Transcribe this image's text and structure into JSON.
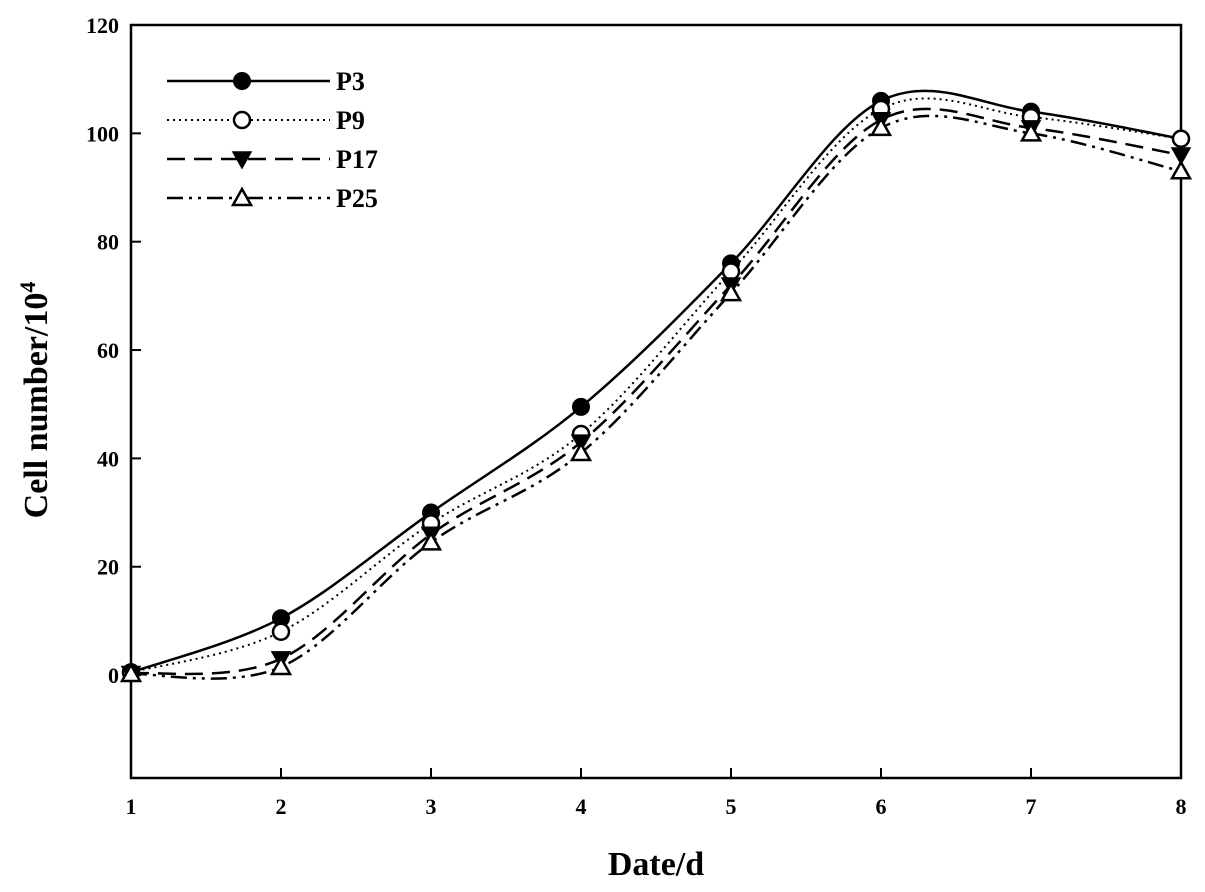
{
  "chart_data": {
    "type": "line",
    "title": "",
    "xlabel": "Date/d",
    "ylabel_main": "Cell number/10",
    "ylabel_sup": "4",
    "x": [
      1,
      2,
      3,
      4,
      5,
      6,
      7,
      8
    ],
    "xlim": [
      1,
      8
    ],
    "ylim": [
      -19,
      120
    ],
    "yticks": [
      0,
      20,
      40,
      60,
      80,
      100,
      120
    ],
    "xticks": [
      1,
      2,
      3,
      4,
      5,
      6,
      7,
      8
    ],
    "grid": false,
    "legend": "top-left",
    "series": [
      {
        "name": "P3",
        "values": [
          0.5,
          10.5,
          30,
          49.5,
          76,
          106,
          104,
          99
        ],
        "marker": "filled-circle",
        "line_style": "solid",
        "color": "#000000"
      },
      {
        "name": "P9",
        "values": [
          0.5,
          8,
          28,
          44.5,
          74.5,
          104.5,
          103,
          99
        ],
        "marker": "open-circle",
        "line_style": "dotted",
        "color": "#000000"
      },
      {
        "name": "P17",
        "values": [
          0.3,
          3,
          26,
          43,
          72,
          102.5,
          101,
          96
        ],
        "marker": "filled-triangle-down",
        "line_style": "dashed",
        "color": "#000000"
      },
      {
        "name": "P25",
        "values": [
          0.2,
          1.5,
          24.5,
          41,
          70.5,
          101,
          100,
          93
        ],
        "marker": "open-triangle-up",
        "line_style": "dash-dot-dot",
        "color": "#000000"
      }
    ]
  }
}
